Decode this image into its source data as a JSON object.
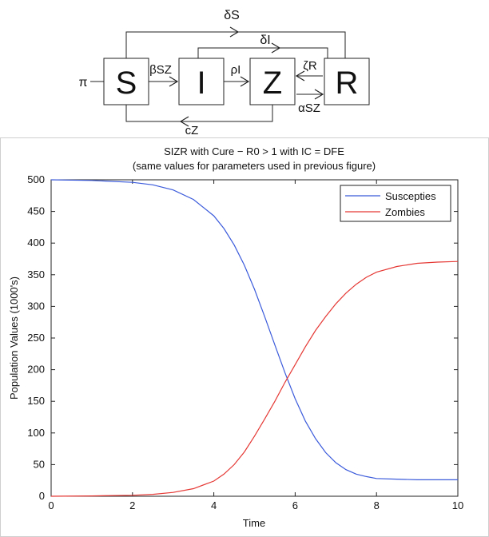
{
  "diagram": {
    "compartments": [
      "S",
      "I",
      "Z",
      "R"
    ],
    "labels": {
      "pi": "π",
      "beta": "βSZ",
      "rho": "ρI",
      "zeta": "ζR",
      "alpha": "αSZ",
      "deltaS": "δS",
      "deltaI": "δI",
      "c": "cZ"
    }
  },
  "chart_data": {
    "type": "line",
    "title": "SIZR with Cure − R0 > 1 with IC = DFE",
    "subtitle": "(same values for parameters used in previous figure)",
    "xlabel": "Time",
    "ylabel": "Population Values (1000's)",
    "xlim": [
      0,
      10
    ],
    "ylim": [
      0,
      500
    ],
    "xticks": [
      0,
      2,
      4,
      6,
      8,
      10
    ],
    "yticks": [
      0,
      50,
      100,
      150,
      200,
      250,
      300,
      350,
      400,
      450,
      500
    ],
    "grid": false,
    "legend_position": "top-right",
    "series": [
      {
        "name": "Suscepties",
        "color": "#3b5bdb",
        "x": [
          0,
          1,
          2,
          2.5,
          3,
          3.5,
          4,
          4.25,
          4.5,
          4.75,
          5,
          5.25,
          5.5,
          5.75,
          6,
          6.25,
          6.5,
          6.75,
          7,
          7.25,
          7.5,
          7.75,
          8,
          8.5,
          9,
          9.5,
          10
        ],
        "y": [
          500,
          499,
          496,
          492,
          484,
          469,
          443,
          423,
          397,
          365,
          327,
          284,
          239,
          195,
          154,
          119,
          91,
          69,
          53,
          42,
          35,
          31,
          28,
          27,
          26,
          26,
          26
        ]
      },
      {
        "name": "Zombies",
        "color": "#e53935",
        "x": [
          0,
          1,
          2,
          2.5,
          3,
          3.5,
          4,
          4.25,
          4.5,
          4.75,
          5,
          5.25,
          5.5,
          5.75,
          6,
          6.25,
          6.5,
          6.75,
          7,
          7.25,
          7.5,
          7.75,
          8,
          8.5,
          9,
          9.5,
          10
        ],
        "y": [
          0,
          0.5,
          1.5,
          3,
          6,
          12,
          24,
          35,
          50,
          70,
          95,
          122,
          150,
          180,
          208,
          236,
          262,
          284,
          304,
          321,
          335,
          346,
          354,
          363,
          368,
          370,
          371
        ]
      }
    ]
  }
}
